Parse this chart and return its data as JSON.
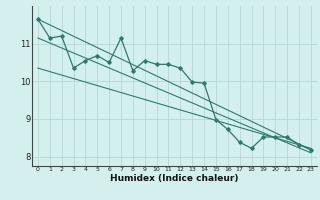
{
  "xlabel": "Humidex (Indice chaleur)",
  "background_color": "#d4f0ee",
  "grid_color": "#b8d8d4",
  "line_color": "#2d7a6e",
  "xlim": [
    -0.5,
    23.5
  ],
  "ylim": [
    7.75,
    12.0
  ],
  "xticks": [
    0,
    1,
    2,
    3,
    4,
    5,
    6,
    7,
    8,
    9,
    10,
    11,
    12,
    13,
    14,
    15,
    16,
    17,
    18,
    19,
    20,
    21,
    22,
    23
  ],
  "yticks": [
    8,
    9,
    10,
    11
  ],
  "curve1_x": [
    0,
    1,
    2,
    3,
    4,
    5,
    6,
    7,
    8,
    9,
    10,
    11,
    12,
    13,
    14,
    15,
    16,
    17,
    18,
    19,
    20,
    21,
    22,
    23
  ],
  "curve1_y": [
    11.65,
    11.15,
    11.2,
    10.35,
    10.55,
    10.68,
    10.5,
    11.15,
    10.28,
    10.55,
    10.45,
    10.45,
    10.35,
    9.98,
    9.95,
    8.98,
    8.72,
    8.38,
    8.22,
    8.52,
    8.52,
    8.52,
    8.32,
    8.18
  ],
  "line2_x": [
    0,
    23
  ],
  "line2_y": [
    11.65,
    8.18
  ],
  "line3_x": [
    0,
    23
  ],
  "line3_y": [
    11.15,
    8.1
  ],
  "line4_x": [
    0,
    23
  ],
  "line4_y": [
    10.35,
    8.22
  ]
}
